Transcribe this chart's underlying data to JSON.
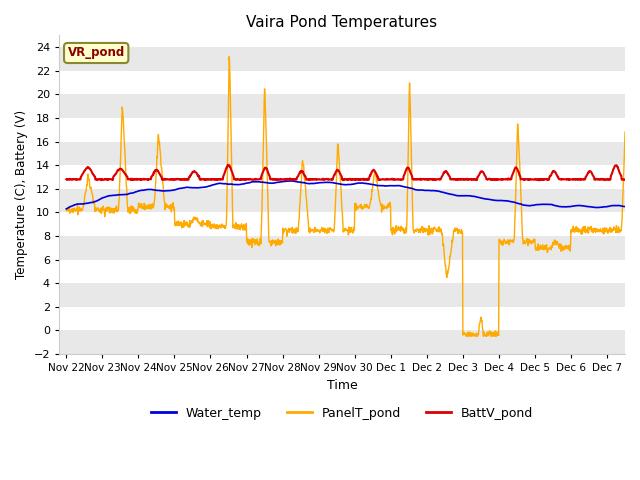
{
  "title": "Vaira Pond Temperatures",
  "xlabel": "Time",
  "ylabel": "Temperature (C), Battery (V)",
  "ylim": [
    -2,
    25
  ],
  "yticks": [
    -2,
    0,
    2,
    4,
    6,
    8,
    10,
    12,
    14,
    16,
    18,
    20,
    22,
    24
  ],
  "bg_color": "#ffffff",
  "plot_bg_color": "#ffffff",
  "band_color": "#e8e8e8",
  "annotation_text": "VR_pond",
  "annotation_bg": "#ffffcc",
  "annotation_border": "#888833",
  "water_color": "#0000dd",
  "panel_color": "#ffaa00",
  "batt_color": "#dd0000",
  "xtick_labels": [
    "Nov 22",
    "Nov 23",
    "Nov 24",
    "Nov 25",
    "Nov 26",
    "Nov 27",
    "Nov 28",
    "Nov 29",
    "Nov 30",
    "Dec 1",
    "Dec 2",
    "Dec 3",
    "Dec 4",
    "Dec 5",
    "Dec 6",
    "Dec 7"
  ],
  "xtick_positions": [
    0,
    1,
    2,
    3,
    4,
    5,
    6,
    7,
    8,
    9,
    10,
    11,
    12,
    13,
    14,
    15
  ]
}
